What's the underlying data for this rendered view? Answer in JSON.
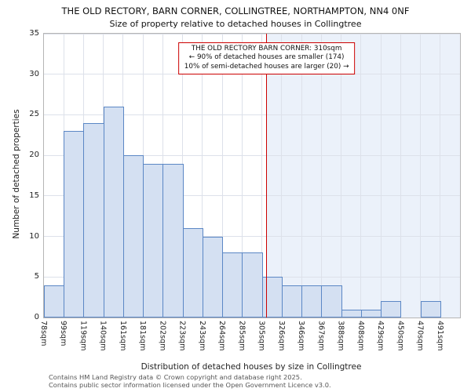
{
  "header": {
    "title": "THE OLD RECTORY, BARN CORNER, COLLINGTREE, NORTHAMPTON, NN4 0NF",
    "subtitle": "Size of property relative to detached houses in Collingtree"
  },
  "chart_data": {
    "type": "bar",
    "title": "Size of property relative to detached houses in Collingtree",
    "categories": [
      "78sqm",
      "99sqm",
      "119sqm",
      "140sqm",
      "161sqm",
      "181sqm",
      "202sqm",
      "223sqm",
      "243sqm",
      "264sqm",
      "285sqm",
      "305sqm",
      "326sqm",
      "346sqm",
      "367sqm",
      "388sqm",
      "408sqm",
      "429sqm",
      "450sqm",
      "470sqm",
      "491sqm"
    ],
    "values": [
      4,
      23,
      24,
      26,
      20,
      19,
      19,
      11,
      10,
      8,
      8,
      5,
      4,
      4,
      4,
      1,
      1,
      2,
      0,
      2
    ],
    "xlabel": "Distribution of detached houses by size in Collingtree",
    "ylabel": "Number of detached properties",
    "ylim": [
      0,
      35
    ],
    "ytick_step": 5,
    "grid": true,
    "legend": "none",
    "marker": {
      "value_sqm": 310,
      "label": "310sqm",
      "color": "#cc0000"
    },
    "annotation": {
      "line1": "THE OLD RECTORY BARN CORNER: 310sqm",
      "line2": "← 90% of detached houses are smaller (174)",
      "line3": "10% of semi-detached houses are larger (20) →"
    },
    "colors": {
      "bar_fill": "#d4e0f2",
      "bar_border": "#5b87c5",
      "marker_line": "#cc0000",
      "shade_right": "rgba(198,216,240,0.35)",
      "grid": "#dde1ea"
    }
  },
  "footer": {
    "line1": "Contains HM Land Registry data © Crown copyright and database right 2025.",
    "line2": "Contains public sector information licensed under the Open Government Licence v3.0."
  }
}
